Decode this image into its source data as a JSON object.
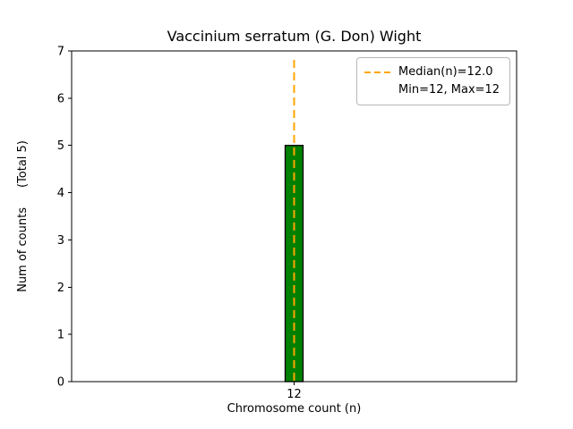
{
  "figure": {
    "title": "Vaccinium serratum (G. Don) Wight",
    "xlabel": "Chromosome count (n)",
    "ylabel": "Num of counts",
    "ylabel_total": "(Total 5)"
  },
  "chart_data": {
    "type": "bar",
    "title": "Vaccinium serratum (G. Don) Wight",
    "categories": [
      "12"
    ],
    "values": [
      5
    ],
    "xlabel": "Chromosome count (n)",
    "ylabel": "Num of counts (Total 5)",
    "total_counts": 5,
    "ylim": [
      0,
      7
    ],
    "yticks": [
      0,
      1,
      2,
      3,
      4,
      5,
      6,
      7
    ],
    "grid": false,
    "bar_color": "#008000",
    "bar_edge_color": "#000000",
    "median": 12.0,
    "min": 12,
    "max": 12,
    "median_line_color": "#FFA500",
    "median_line_style": "dashed",
    "legend_position": "upper right",
    "legend_labels": [
      "Median(n)=12.0",
      "Min=12, Max=12"
    ]
  }
}
